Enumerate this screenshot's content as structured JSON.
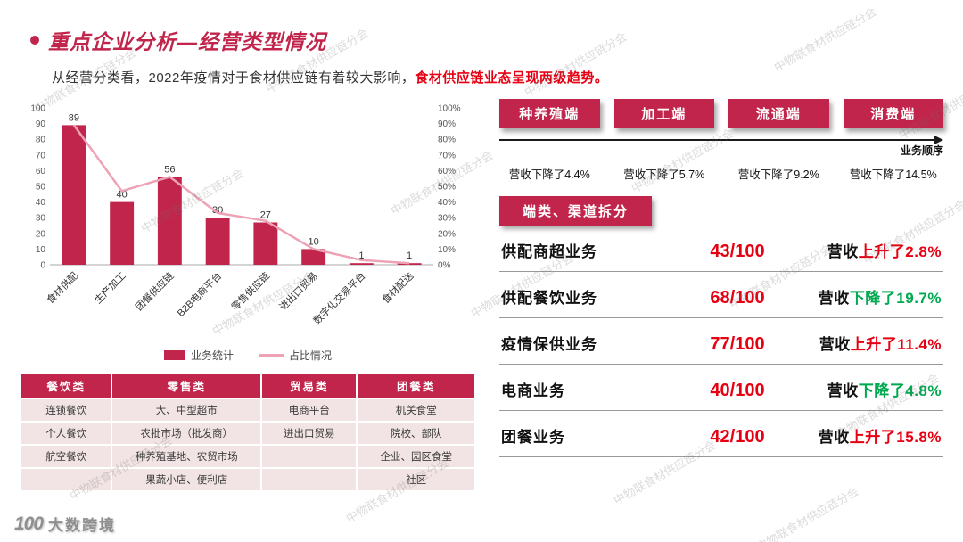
{
  "page": {
    "title": "重点企业分析—经营类型情况",
    "subtitle_plain": "从经营分类看，2022年疫情对于食材供应链有着较大影响，",
    "subtitle_highlight": "食材供应链业态呈现两级趋势。",
    "watermark": "中物联食材供应链分会",
    "logo_mark": "100",
    "logo_text": "大数跨境"
  },
  "colors": {
    "crimson": "#c2254b",
    "pink_line": "#eda3b5",
    "red": "#e60012",
    "green": "#00a94f"
  },
  "chart_data": {
    "type": "bar",
    "categories": [
      "食材供配",
      "生产加工",
      "团餐供应链",
      "B2B电商平台",
      "零售供应链",
      "进出口贸易",
      "数字化交易平台",
      "食材配送"
    ],
    "series": [
      {
        "name": "业务统计",
        "type": "bar",
        "values": [
          89,
          40,
          56,
          30,
          27,
          10,
          1,
          1
        ]
      },
      {
        "name": "占比情况",
        "type": "line",
        "values": [
          89,
          47,
          56,
          33,
          28,
          10,
          3,
          1
        ]
      }
    ],
    "ylim_left": [
      0,
      100
    ],
    "ylim_right": [
      0,
      100
    ],
    "left_ticks": [
      "100",
      "90",
      "80",
      "70",
      "60",
      "50",
      "40",
      "30",
      "20",
      "10",
      "0"
    ],
    "right_ticks": [
      "100%",
      "90%",
      "80%",
      "70%",
      "60%",
      "50%",
      "40%",
      "30%",
      "20%",
      "10%",
      "0%"
    ],
    "grid": false,
    "legend_position": "bottom"
  },
  "legend": {
    "bar_label": "业务统计",
    "line_label": "占比情况"
  },
  "category_table": {
    "headers": [
      "餐饮类",
      "零售类",
      "贸易类",
      "团餐类"
    ],
    "rows": [
      [
        "连锁餐饮",
        "大、中型超市",
        "电商平台",
        "机关食堂"
      ],
      [
        "个人餐饮",
        "农批市场（批发商）",
        "进出口贸易",
        "院校、部队"
      ],
      [
        "航空餐饮",
        "种养殖基地、农贸市场",
        "",
        "企业、园区食堂"
      ],
      [
        "",
        "果蔬小店、便利店",
        "",
        "社区"
      ]
    ]
  },
  "stages": {
    "arrow_label": "业务顺序",
    "items": [
      {
        "label": "种养殖端",
        "change": "营收下降了4.4%"
      },
      {
        "label": "加工端",
        "change": "营收下降了5.7%"
      },
      {
        "label": "流通端",
        "change": "营收下降了9.2%"
      },
      {
        "label": "消费端",
        "change": "营收下降了14.5%"
      }
    ]
  },
  "breakdown": {
    "banner": "端类、渠道拆分",
    "rows": [
      {
        "label": "供配商超业务",
        "score": "43/100",
        "prefix": "营收",
        "change": "上升了2.8%",
        "direction": "up"
      },
      {
        "label": "供配餐饮业务",
        "score": "68/100",
        "prefix": "营收",
        "change": "下降了19.7%",
        "direction": "down"
      },
      {
        "label": "疫情保供业务",
        "score": "77/100",
        "prefix": "营收",
        "change": "上升了11.4%",
        "direction": "up"
      },
      {
        "label": "电商业务",
        "score": "40/100",
        "prefix": "营收",
        "change": "下降了4.8%",
        "direction": "down"
      },
      {
        "label": "团餐业务",
        "score": "42/100",
        "prefix": "营收",
        "change": "上升了15.8%",
        "direction": "up"
      }
    ]
  }
}
